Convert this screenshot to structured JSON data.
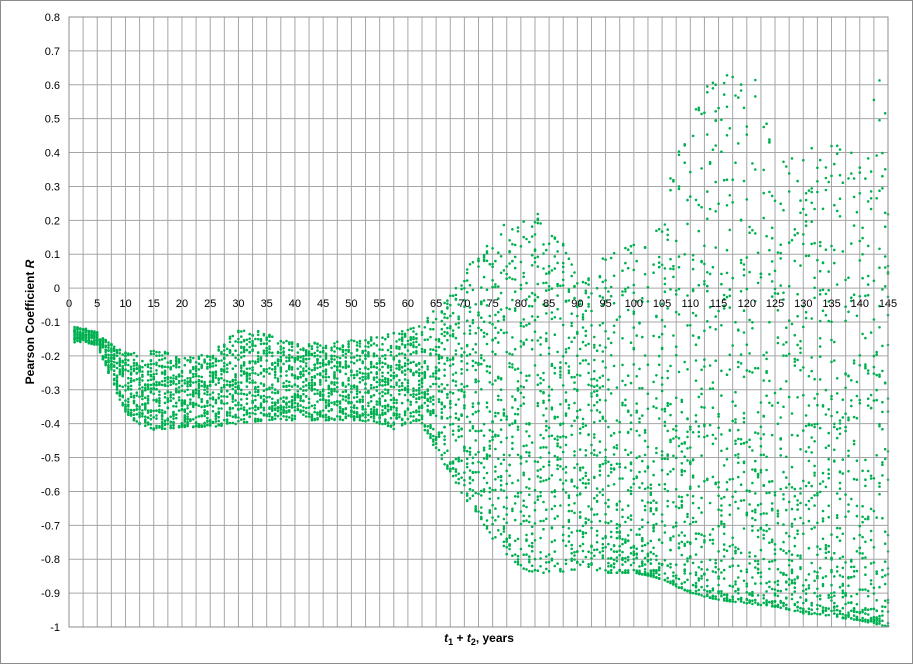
{
  "chart_data": {
    "type": "scatter",
    "xlabel": {
      "t1": "t",
      "sub1": "1",
      "plus": " + ",
      "t2": "t",
      "sub2": "2",
      "suffix": ", years"
    },
    "ylabel": {
      "main": "Pearson Coefficient ",
      "var": "R"
    },
    "xlim": [
      0,
      145
    ],
    "ylim": [
      -1,
      0.8
    ],
    "xticks": [
      "0",
      "5",
      "10",
      "15",
      "20",
      "25",
      "30",
      "35",
      "40",
      "45",
      "50",
      "55",
      "60",
      "65",
      "70",
      "75",
      "80",
      "85",
      "90",
      "95",
      "100",
      "105",
      "110",
      "115",
      "120",
      "125",
      "130",
      "135",
      "140",
      "145"
    ],
    "yticks": [
      "0.8",
      "0.7",
      "0.6",
      "0.5",
      "0.4",
      "0.3",
      "0.2",
      "0.1",
      "0",
      "-0.1",
      "-0.2",
      "-0.3",
      "-0.4",
      "-0.5",
      "-0.6",
      "-0.7",
      "-0.8",
      "-0.9",
      "-1"
    ],
    "x_minor_step": 2.5,
    "grid": true,
    "marker_color": "#00b050",
    "envelope": {
      "x": [
        1,
        3,
        5,
        7,
        10,
        13,
        15,
        20,
        25,
        30,
        35,
        40,
        45,
        50,
        55,
        58,
        60,
        62,
        65,
        68,
        70,
        75,
        80,
        83,
        85,
        88,
        90,
        93,
        95,
        100,
        103,
        105,
        110,
        115,
        120,
        125,
        130,
        135,
        140,
        145
      ],
      "upper": [
        -0.11,
        -0.12,
        -0.13,
        -0.16,
        -0.18,
        -0.2,
        -0.18,
        -0.2,
        -0.19,
        -0.12,
        -0.13,
        -0.16,
        -0.16,
        -0.15,
        -0.14,
        -0.13,
        -0.12,
        -0.11,
        -0.06,
        0.0,
        0.05,
        0.17,
        0.23,
        0.22,
        0.19,
        0.12,
        0.05,
        0.05,
        0.1,
        0.13,
        0.12,
        0.32,
        0.5,
        0.66,
        0.73,
        0.4,
        0.43,
        0.45,
        0.46,
        0.68
      ],
      "lower": [
        -0.16,
        -0.16,
        -0.17,
        -0.25,
        -0.37,
        -0.41,
        -0.42,
        -0.41,
        -0.41,
        -0.4,
        -0.39,
        -0.39,
        -0.39,
        -0.39,
        -0.4,
        -0.42,
        -0.4,
        -0.39,
        -0.48,
        -0.56,
        -0.62,
        -0.74,
        -0.83,
        -0.84,
        -0.84,
        -0.84,
        -0.84,
        -0.83,
        -0.84,
        -0.84,
        -0.85,
        -0.86,
        -0.9,
        -0.92,
        -0.93,
        -0.94,
        -0.96,
        -0.97,
        -0.98,
        -1.0
      ]
    },
    "points_per_x": 20,
    "x_step": 0.5
  }
}
